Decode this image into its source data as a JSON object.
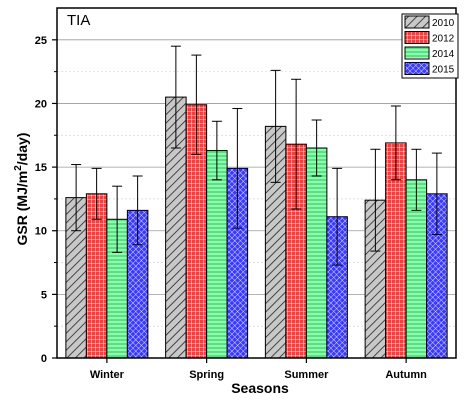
{
  "chart_data": {
    "type": "bar",
    "title": "TIA",
    "xlabel": "Seasons",
    "ylabel_parts": [
      "GSR (MJ/m",
      "2",
      "/day)"
    ],
    "categories": [
      "Winter",
      "Spring",
      "Summer",
      "Autumn"
    ],
    "ylim": [
      0,
      27.5
    ],
    "yticks": [
      0,
      5,
      10,
      15,
      20,
      25
    ],
    "grid": true,
    "legend_position": "top-right",
    "series": [
      {
        "name": "2010",
        "color": "#c8c8c8",
        "pattern": "diagonal-hatch",
        "values": [
          12.6,
          20.5,
          18.2,
          12.4
        ],
        "errors": [
          2.6,
          4.0,
          4.4,
          4.0
        ]
      },
      {
        "name": "2012",
        "color": "#ff3a3a",
        "pattern": "grid",
        "values": [
          12.9,
          19.9,
          16.8,
          16.9
        ],
        "errors": [
          2.0,
          3.9,
          5.1,
          2.9
        ]
      },
      {
        "name": "2014",
        "color": "#4ce87c",
        "pattern": "horizontal-lines",
        "values": [
          10.9,
          16.3,
          16.5,
          14.0
        ],
        "errors": [
          2.6,
          2.3,
          2.2,
          2.4
        ]
      },
      {
        "name": "2015",
        "color": "#3a3aff",
        "pattern": "crosshatch",
        "values": [
          11.6,
          14.9,
          11.1,
          12.9
        ],
        "errors": [
          2.7,
          4.7,
          3.8,
          3.2
        ]
      }
    ]
  }
}
